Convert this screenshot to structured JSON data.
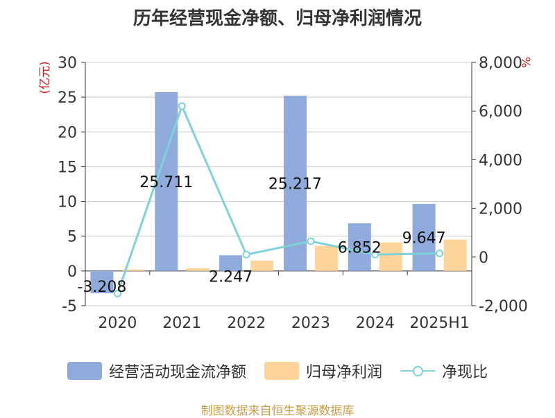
{
  "chart_data": {
    "type": "bar",
    "title": "历年经营现金净额、归母净利润情况",
    "categories": [
      "2020",
      "2021",
      "2022",
      "2023",
      "2024",
      "2025H1"
    ],
    "y_left": {
      "unit_label": "(亿元)",
      "ylim": [
        -5,
        30
      ],
      "ticks": [
        -5,
        0,
        5,
        10,
        15,
        20,
        25,
        30
      ]
    },
    "y_right": {
      "unit_label": "%",
      "ylim": [
        -2000,
        8000
      ],
      "ticks": [
        -2000,
        0,
        2000,
        4000,
        6000,
        8000
      ],
      "tick_labels": [
        "-2,000",
        "0",
        "2,000",
        "4,000",
        "6,000",
        "8,000"
      ]
    },
    "series": [
      {
        "name": "经营活动现金流净额",
        "type": "bar",
        "axis": "left",
        "color": "#8eabdb",
        "values": [
          -3.208,
          25.711,
          2.247,
          25.217,
          6.852,
          9.647
        ],
        "data_labels": [
          "-3.208",
          "25.711",
          "2.247",
          "25.217",
          "6.852",
          "9.647"
        ]
      },
      {
        "name": "归母净利润",
        "type": "bar",
        "axis": "left",
        "color": "#fdd49a",
        "values": [
          0.2,
          0.4,
          1.5,
          3.6,
          4.1,
          4.5
        ]
      },
      {
        "name": "净现比",
        "type": "line",
        "axis": "right",
        "color": "#7fd3d8",
        "values": [
          -1500,
          6200,
          100,
          650,
          100,
          150
        ]
      }
    ],
    "grid": true,
    "legend_position": "bottom"
  },
  "source": "制图数据来自恒生聚源数据库"
}
